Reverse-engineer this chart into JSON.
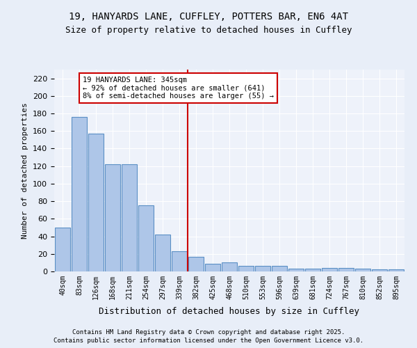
{
  "title1": "19, HANYARDS LANE, CUFFLEY, POTTERS BAR, EN6 4AT",
  "title2": "Size of property relative to detached houses in Cuffley",
  "xlabel": "Distribution of detached houses by size in Cuffley",
  "ylabel": "Number of detached properties",
  "categories": [
    "40sqm",
    "83sqm",
    "126sqm",
    "168sqm",
    "211sqm",
    "254sqm",
    "297sqm",
    "339sqm",
    "382sqm",
    "425sqm",
    "468sqm",
    "510sqm",
    "553sqm",
    "596sqm",
    "639sqm",
    "681sqm",
    "724sqm",
    "767sqm",
    "810sqm",
    "852sqm",
    "895sqm"
  ],
  "bar_values": [
    50,
    176,
    157,
    122,
    122,
    75,
    42,
    23,
    17,
    9,
    10,
    6,
    6,
    6,
    3,
    3,
    4,
    4,
    3,
    2,
    2
  ],
  "bar_color": "#aec6e8",
  "bar_edge_color": "#5a8fc4",
  "vline_x": 7.5,
  "vline_color": "#cc0000",
  "annotation_text": "19 HANYARDS LANE: 345sqm\n← 92% of detached houses are smaller (641)\n8% of semi-detached houses are larger (55) →",
  "annotation_box_color": "#ffffff",
  "annotation_box_edge": "#cc0000",
  "ylim": [
    0,
    230
  ],
  "yticks": [
    0,
    20,
    40,
    60,
    80,
    100,
    120,
    140,
    160,
    180,
    200,
    220
  ],
  "bg_color": "#e8eef8",
  "plot_bg_color": "#eef2fa",
  "footer1": "Contains HM Land Registry data © Crown copyright and database right 2025.",
  "footer2": "Contains public sector information licensed under the Open Government Licence v3.0."
}
